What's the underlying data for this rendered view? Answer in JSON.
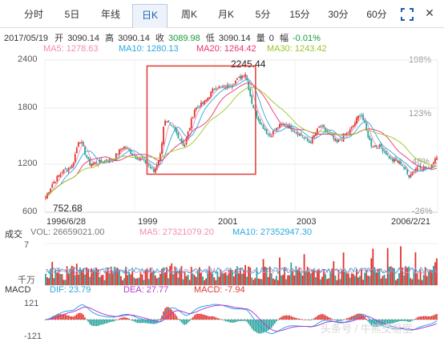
{
  "tabs": [
    "分时",
    "5日",
    "年线",
    "日K",
    "周K",
    "月K",
    "5分",
    "15分",
    "30分",
    "60分"
  ],
  "active_tab": "日K",
  "info": {
    "date": "2017/05/19",
    "open_label": "开",
    "open": "3090.14",
    "high_label": "高",
    "high": "3090.14",
    "close_label": "收",
    "close": "3089.98",
    "low_label": "低",
    "low": "3090.14",
    "vol_label": "量",
    "vol": "0",
    "chg_label": "幅",
    "chg": "-0.01%"
  },
  "ma": {
    "ma5": "MA5: 1278.63",
    "ma10": "MA10: 1280.13",
    "ma20": "MA20: 1264.42",
    "ma30": "MA30: 1243.42"
  },
  "price_axis": [
    "2400",
    "1800",
    "1200",
    "600"
  ],
  "pct_axis": [
    "198%",
    "123%",
    "48%",
    "-26%"
  ],
  "date_axis": [
    "1996/6/28",
    "1999",
    "2001",
    "2003",
    "2006/2/21"
  ],
  "annotations": {
    "peak": "2245.44",
    "trough": "752.68"
  },
  "volume": {
    "title": "成交",
    "vol": "VOL: 26659021.00",
    "ma5": "MA5: 27321079.20",
    "ma10": "MA10: 27352947.30",
    "top": "7",
    "unit": "千万"
  },
  "macd": {
    "title": "MACD",
    "dif": "DIF: 23.79",
    "dea": "DEA: 27.77",
    "macd": "MACD: -7.94",
    "top": "121",
    "bottom": "-121"
  },
  "watermark": "头条号 / 牛熊交易室",
  "colors": {
    "up": "#e0342e",
    "down": "#2aa39a",
    "ma5": "#f28bb5",
    "ma10": "#27a9df",
    "ma20": "#e9336e",
    "ma30": "#9ac526",
    "box": "#e23b35"
  },
  "chart_data": {
    "type": "candlestick",
    "title": "",
    "xlabel": "",
    "ylabel": "",
    "ylim": [
      600,
      2400
    ],
    "x_range": [
      "1996/6/28",
      "2006/2/21"
    ],
    "close_path": [
      [
        "1996/6/28",
        760
      ],
      [
        "1996/9",
        930
      ],
      [
        "1996/12",
        1080
      ],
      [
        "1997/3",
        1150
      ],
      [
        "1997/5",
        1480
      ],
      [
        "1997/8",
        1170
      ],
      [
        "1997/11",
        1190
      ],
      [
        "1998/3",
        1230
      ],
      [
        "1998/6",
        1380
      ],
      [
        "1998/10",
        1250
      ],
      [
        "1999/1",
        1180
      ],
      [
        "1999/3",
        1080
      ],
      [
        "1999/5",
        1290
      ],
      [
        "1999/6",
        1680
      ],
      [
        "1999/9",
        1580
      ],
      [
        "1999/12",
        1380
      ],
      [
        "2000/3",
        1820
      ],
      [
        "2000/6",
        1900
      ],
      [
        "2000/9",
        2080
      ],
      [
        "2000/12",
        2070
      ],
      [
        "2001/3",
        2150
      ],
      [
        "2001/6",
        2245.44
      ],
      [
        "2001/8",
        1880
      ],
      [
        "2001/10",
        1690
      ],
      [
        "2002/1",
        1500
      ],
      [
        "2002/4",
        1620
      ],
      [
        "2002/6",
        1650
      ],
      [
        "2002/9",
        1550
      ],
      [
        "2003/1",
        1420
      ],
      [
        "2003/4",
        1620
      ],
      [
        "2003/6",
        1550
      ],
      [
        "2003/9",
        1420
      ],
      [
        "2004/1",
        1570
      ],
      [
        "2004/4",
        1780
      ],
      [
        "2004/7",
        1400
      ],
      [
        "2004/10",
        1370
      ],
      [
        "2005/1",
        1220
      ],
      [
        "2005/4",
        1180
      ],
      [
        "2005/6",
        1030
      ],
      [
        "2005/9",
        1150
      ],
      [
        "2005/12",
        1100
      ],
      [
        "2006/2/21",
        1290
      ]
    ],
    "peak": 2245.44,
    "trough": 752.68
  }
}
